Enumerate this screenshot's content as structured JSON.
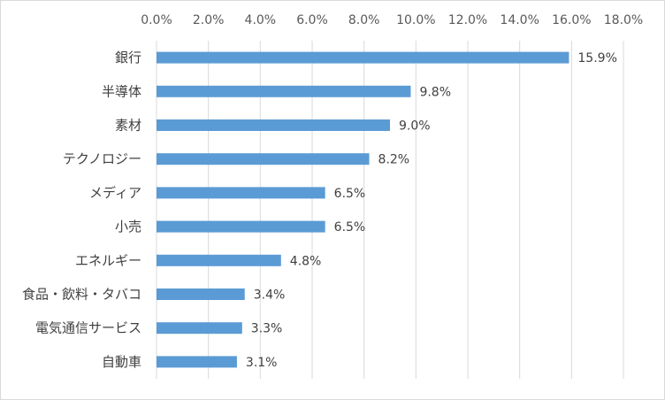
{
  "chart_data": {
    "type": "bar",
    "orientation": "horizontal",
    "categories": [
      "銀行",
      "半導体",
      "素材",
      "テクノロジー",
      "メディア",
      "小売",
      "エネルギー",
      "食品・飲料・タバコ",
      "電気通信サービス",
      "自動車"
    ],
    "values": [
      15.9,
      9.8,
      9.0,
      8.2,
      6.5,
      6.5,
      4.8,
      3.4,
      3.3,
      3.1
    ],
    "value_labels": [
      "15.9%",
      "9.8%",
      "9.0%",
      "8.2%",
      "6.5%",
      "6.5%",
      "4.8%",
      "3.4%",
      "3.3%",
      "3.1%"
    ],
    "x_ticks": [
      "0.0%",
      "2.0%",
      "4.0%",
      "6.0%",
      "8.0%",
      "10.0%",
      "12.0%",
      "14.0%",
      "16.0%",
      "18.0%"
    ],
    "xlim": [
      0,
      18
    ],
    "x_axis_position": "top",
    "grid": true,
    "legend": "none",
    "bar_color": "#5b9bd5",
    "grid_color": "#d9d9d9"
  }
}
